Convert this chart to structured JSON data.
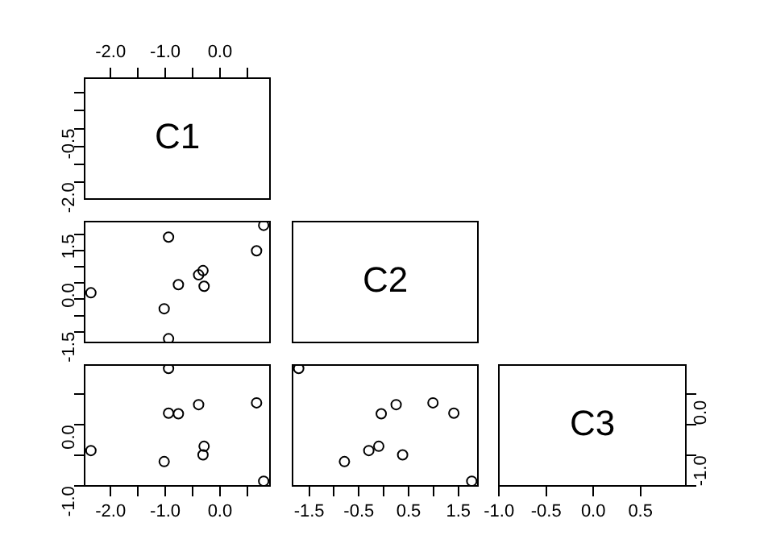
{
  "chart_data": [
    {
      "type": "scatter",
      "title": "C1",
      "xlim": [
        -2.49,
        0.93
      ],
      "xticks": [
        {
          "value": -2,
          "label": "-2.0"
        },
        {
          "value": -1.5,
          "label": null
        },
        {
          "value": -1,
          "label": "-1.0"
        },
        {
          "value": -0.5,
          "label": null
        },
        {
          "value": 0,
          "label": "0.0"
        },
        {
          "value": 0.5,
          "label": null
        }
      ],
      "ylim": [
        -2.49,
        0.93
      ],
      "yticks": [
        {
          "value": -2,
          "label": "-2.0"
        },
        {
          "value": -1.5,
          "label": null
        },
        {
          "value": -1,
          "label": null
        },
        -0.5,
        {
          "value": 0,
          "label": null
        },
        {
          "value": 0.5,
          "label": null
        }
      ]
    },
    {
      "type": "scatter",
      "marker": "circle",
      "color": "#000000",
      "tick_labels": "y",
      "x": [
        -2.36,
        -0.94,
        0.8,
        0.67,
        -0.76,
        -0.39,
        -0.31,
        -0.29,
        -1.02,
        -0.94
      ],
      "values": [
        -0.3,
        1.41,
        1.77,
        0.99,
        -0.05,
        0.25,
        0.38,
        -0.1,
        -0.79,
        -1.71
      ],
      "xlim": [
        -2.49,
        0.93
      ],
      "ylim": [
        -1.85,
        1.91
      ],
      "yticks": [
        -1.5,
        {
          "value": -1,
          "label": null
        },
        {
          "value": -0.5,
          "label": null
        },
        {
          "value": 0,
          "label": "0.0"
        },
        {
          "value": 0.5,
          "label": null
        },
        {
          "value": 1,
          "label": null
        },
        1.5
      ]
    },
    {
      "type": "other",
      "title": "C2"
    },
    {
      "type": "scatter",
      "marker": "circle",
      "color": "#000000",
      "x": [
        -2.36,
        -0.94,
        0.8,
        0.67,
        -0.76,
        -0.39,
        -0.31,
        -0.29,
        -1.02,
        -0.94
      ],
      "values": [
        -0.42,
        0.19,
        -0.92,
        0.36,
        0.18,
        0.33,
        -0.49,
        -0.35,
        -0.6,
        0.92
      ],
      "xlim": [
        -2.49,
        0.93
      ],
      "xticks": [
        {
          "value": -2,
          "label": "-2.0"
        },
        {
          "value": -1.5,
          "label": null
        },
        {
          "value": -1,
          "label": "-1.0"
        },
        {
          "value": -0.5,
          "label": null
        },
        {
          "value": 0,
          "label": "0.0"
        },
        {
          "value": 0.5,
          "label": null
        }
      ],
      "ylim": [
        -1.01,
        0.99
      ],
      "yticks": [
        {
          "value": -1,
          "label": "-1.0"
        },
        {
          "value": -0.5,
          "label": null
        },
        {
          "value": 0,
          "label": "0.0"
        },
        {
          "value": 0.5,
          "label": null
        }
      ]
    },
    {
      "type": "scatter",
      "marker": "circle",
      "color": "#000000",
      "tick_labels": "x",
      "x": [
        -0.3,
        1.41,
        1.77,
        0.99,
        -0.05,
        0.25,
        0.38,
        -0.1,
        -0.79,
        -1.71
      ],
      "values": [
        -0.42,
        0.19,
        -0.92,
        0.36,
        0.18,
        0.33,
        -0.49,
        -0.35,
        -0.6,
        0.92
      ],
      "xlim": [
        -1.85,
        1.91
      ],
      "xticks": [
        -1.5,
        {
          "value": -1,
          "label": null
        },
        -0.5,
        {
          "value": 0,
          "label": null
        },
        0.5,
        {
          "value": 1,
          "label": null
        },
        1.5
      ],
      "ylim": [
        -1.01,
        0.99
      ]
    },
    {
      "type": "scatter",
      "title": "C3",
      "xlim": [
        -1.01,
        0.99
      ],
      "xticks": [
        {
          "value": -1,
          "label": "-1.0"
        },
        -0.5,
        {
          "value": 0,
          "label": "0.0"
        },
        0.5
      ],
      "y2lim": [
        -1.01,
        0.99
      ],
      "y2ticks": [
        {
          "value": -1,
          "label": "-1.0"
        },
        {
          "value": -0.5,
          "label": null
        },
        {
          "value": 0,
          "label": "0.0"
        },
        {
          "value": 0.5,
          "label": null
        }
      ]
    }
  ]
}
